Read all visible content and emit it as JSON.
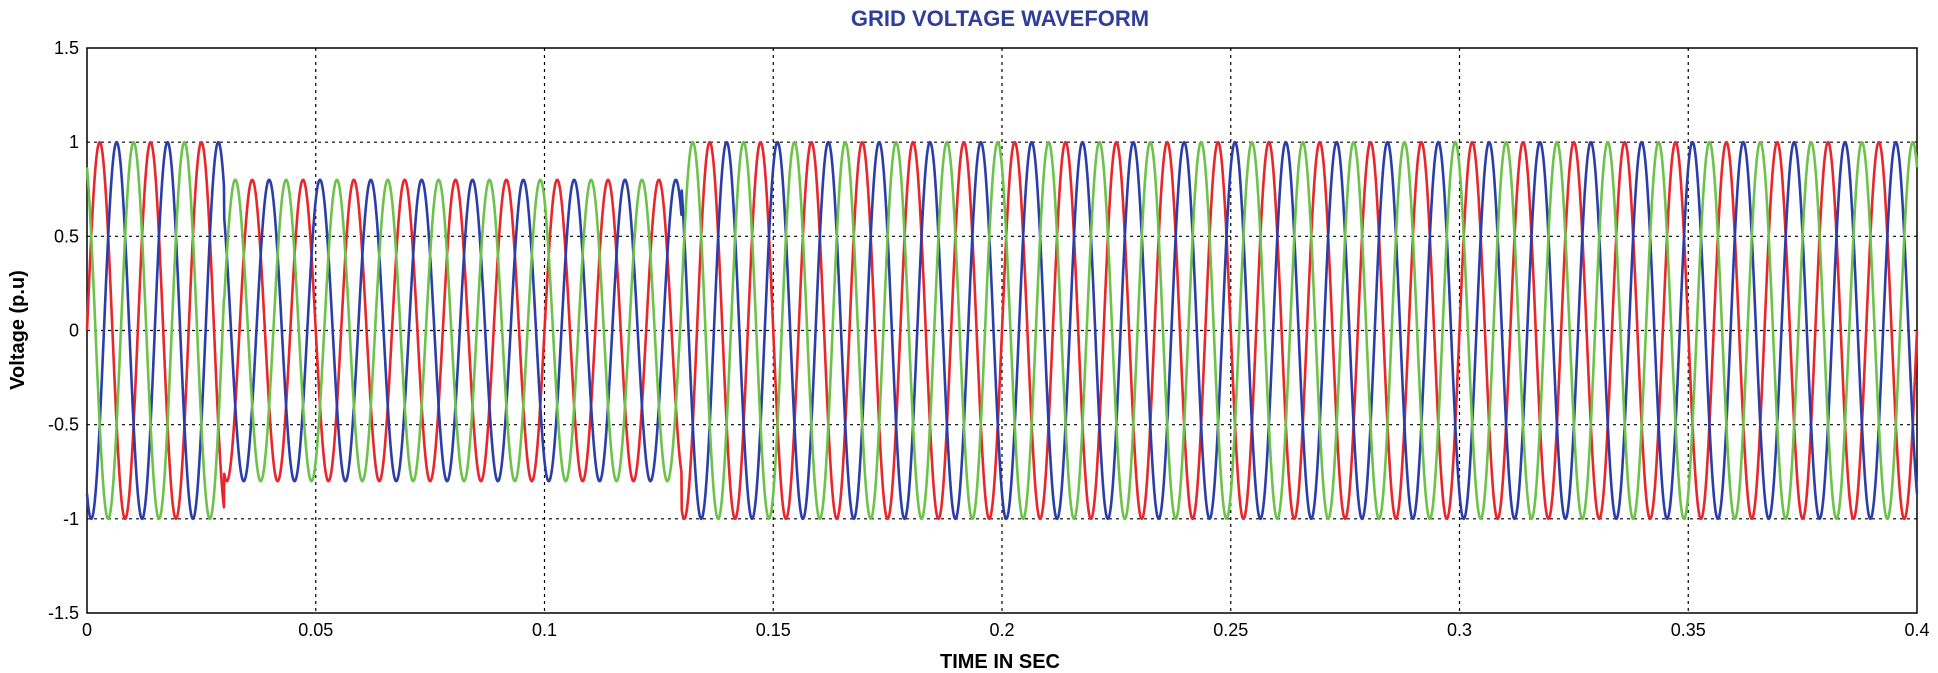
{
  "chart_data": {
    "type": "line",
    "title": "GRID VOLTAGE WAVEFORM",
    "xlabel": "TIME IN SEC",
    "ylabel": "Voltage (p.u)",
    "xlim": [
      0,
      0.4
    ],
    "ylim": [
      -1.5,
      1.5
    ],
    "xticks": [
      "0",
      "0.05",
      "0.1",
      "0.15",
      "0.2",
      "0.25",
      "0.3",
      "0.35",
      "0.4"
    ],
    "yticks": [
      "1.5",
      "1",
      "0.5",
      "0",
      "-0.5",
      "-1",
      "-1.5"
    ],
    "xtick_values": [
      0,
      0.05,
      0.1,
      0.15,
      0.2,
      0.25,
      0.3,
      0.35,
      0.4
    ],
    "ytick_values": [
      1.5,
      1,
      0.5,
      0,
      -0.5,
      -1,
      -1.5
    ],
    "grid": true,
    "frequency_hz": 90,
    "sag": {
      "start": 0.03,
      "end": 0.13,
      "amplitude": 0.8
    },
    "normal_amplitude": 1.0,
    "series": [
      {
        "color": "#e8262b",
        "phase_deg": 0
      },
      {
        "color": "#2b3ea8",
        "phase_deg": -120
      },
      {
        "color": "#6cc24a",
        "phase_deg": 120
      }
    ]
  }
}
